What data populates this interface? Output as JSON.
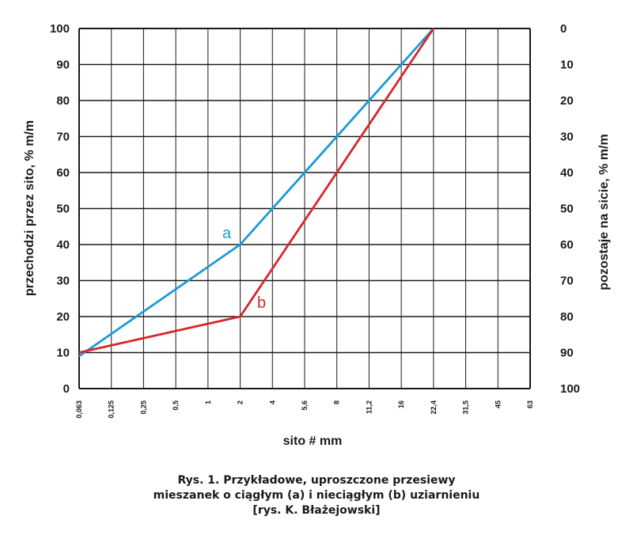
{
  "chart_data": {
    "type": "line",
    "xlabel": "sito # mm",
    "ylabel": "przechodzi przez sito, % m/m",
    "ylabel_right": "pozostaje na sicie, % m/m",
    "x_ticks": [
      "0,063",
      "0,125",
      "0,25",
      "0,5",
      "1",
      "2",
      "4",
      "5,6",
      "8",
      "11,2",
      "16",
      "22,4",
      "31,5",
      "45",
      "63"
    ],
    "y_ticks": [
      "0",
      "10",
      "20",
      "30",
      "40",
      "50",
      "60",
      "70",
      "80",
      "90",
      "100"
    ],
    "y_ticks_right": [
      "100",
      "90",
      "80",
      "70",
      "60",
      "50",
      "40",
      "30",
      "20",
      "10",
      "0"
    ],
    "ylim": [
      0,
      100
    ],
    "grid": true,
    "series": [
      {
        "name": "a",
        "color": "#1a9ad6",
        "x": [
          "0,063",
          "2",
          "22,4"
        ],
        "values": [
          9,
          40,
          100
        ]
      },
      {
        "name": "b",
        "color": "#d6262a",
        "x": [
          "0,063",
          "2",
          "22,4"
        ],
        "values": [
          10,
          20,
          100
        ]
      }
    ]
  },
  "caption": {
    "line1": "Rys. 1. Przykładowe, uproszczone przesiewy",
    "line2": "mieszanek o ciągłym (a) i nieciągłym (b) uziarnieniu",
    "line3": "[rys. K. Błażejowski]"
  }
}
